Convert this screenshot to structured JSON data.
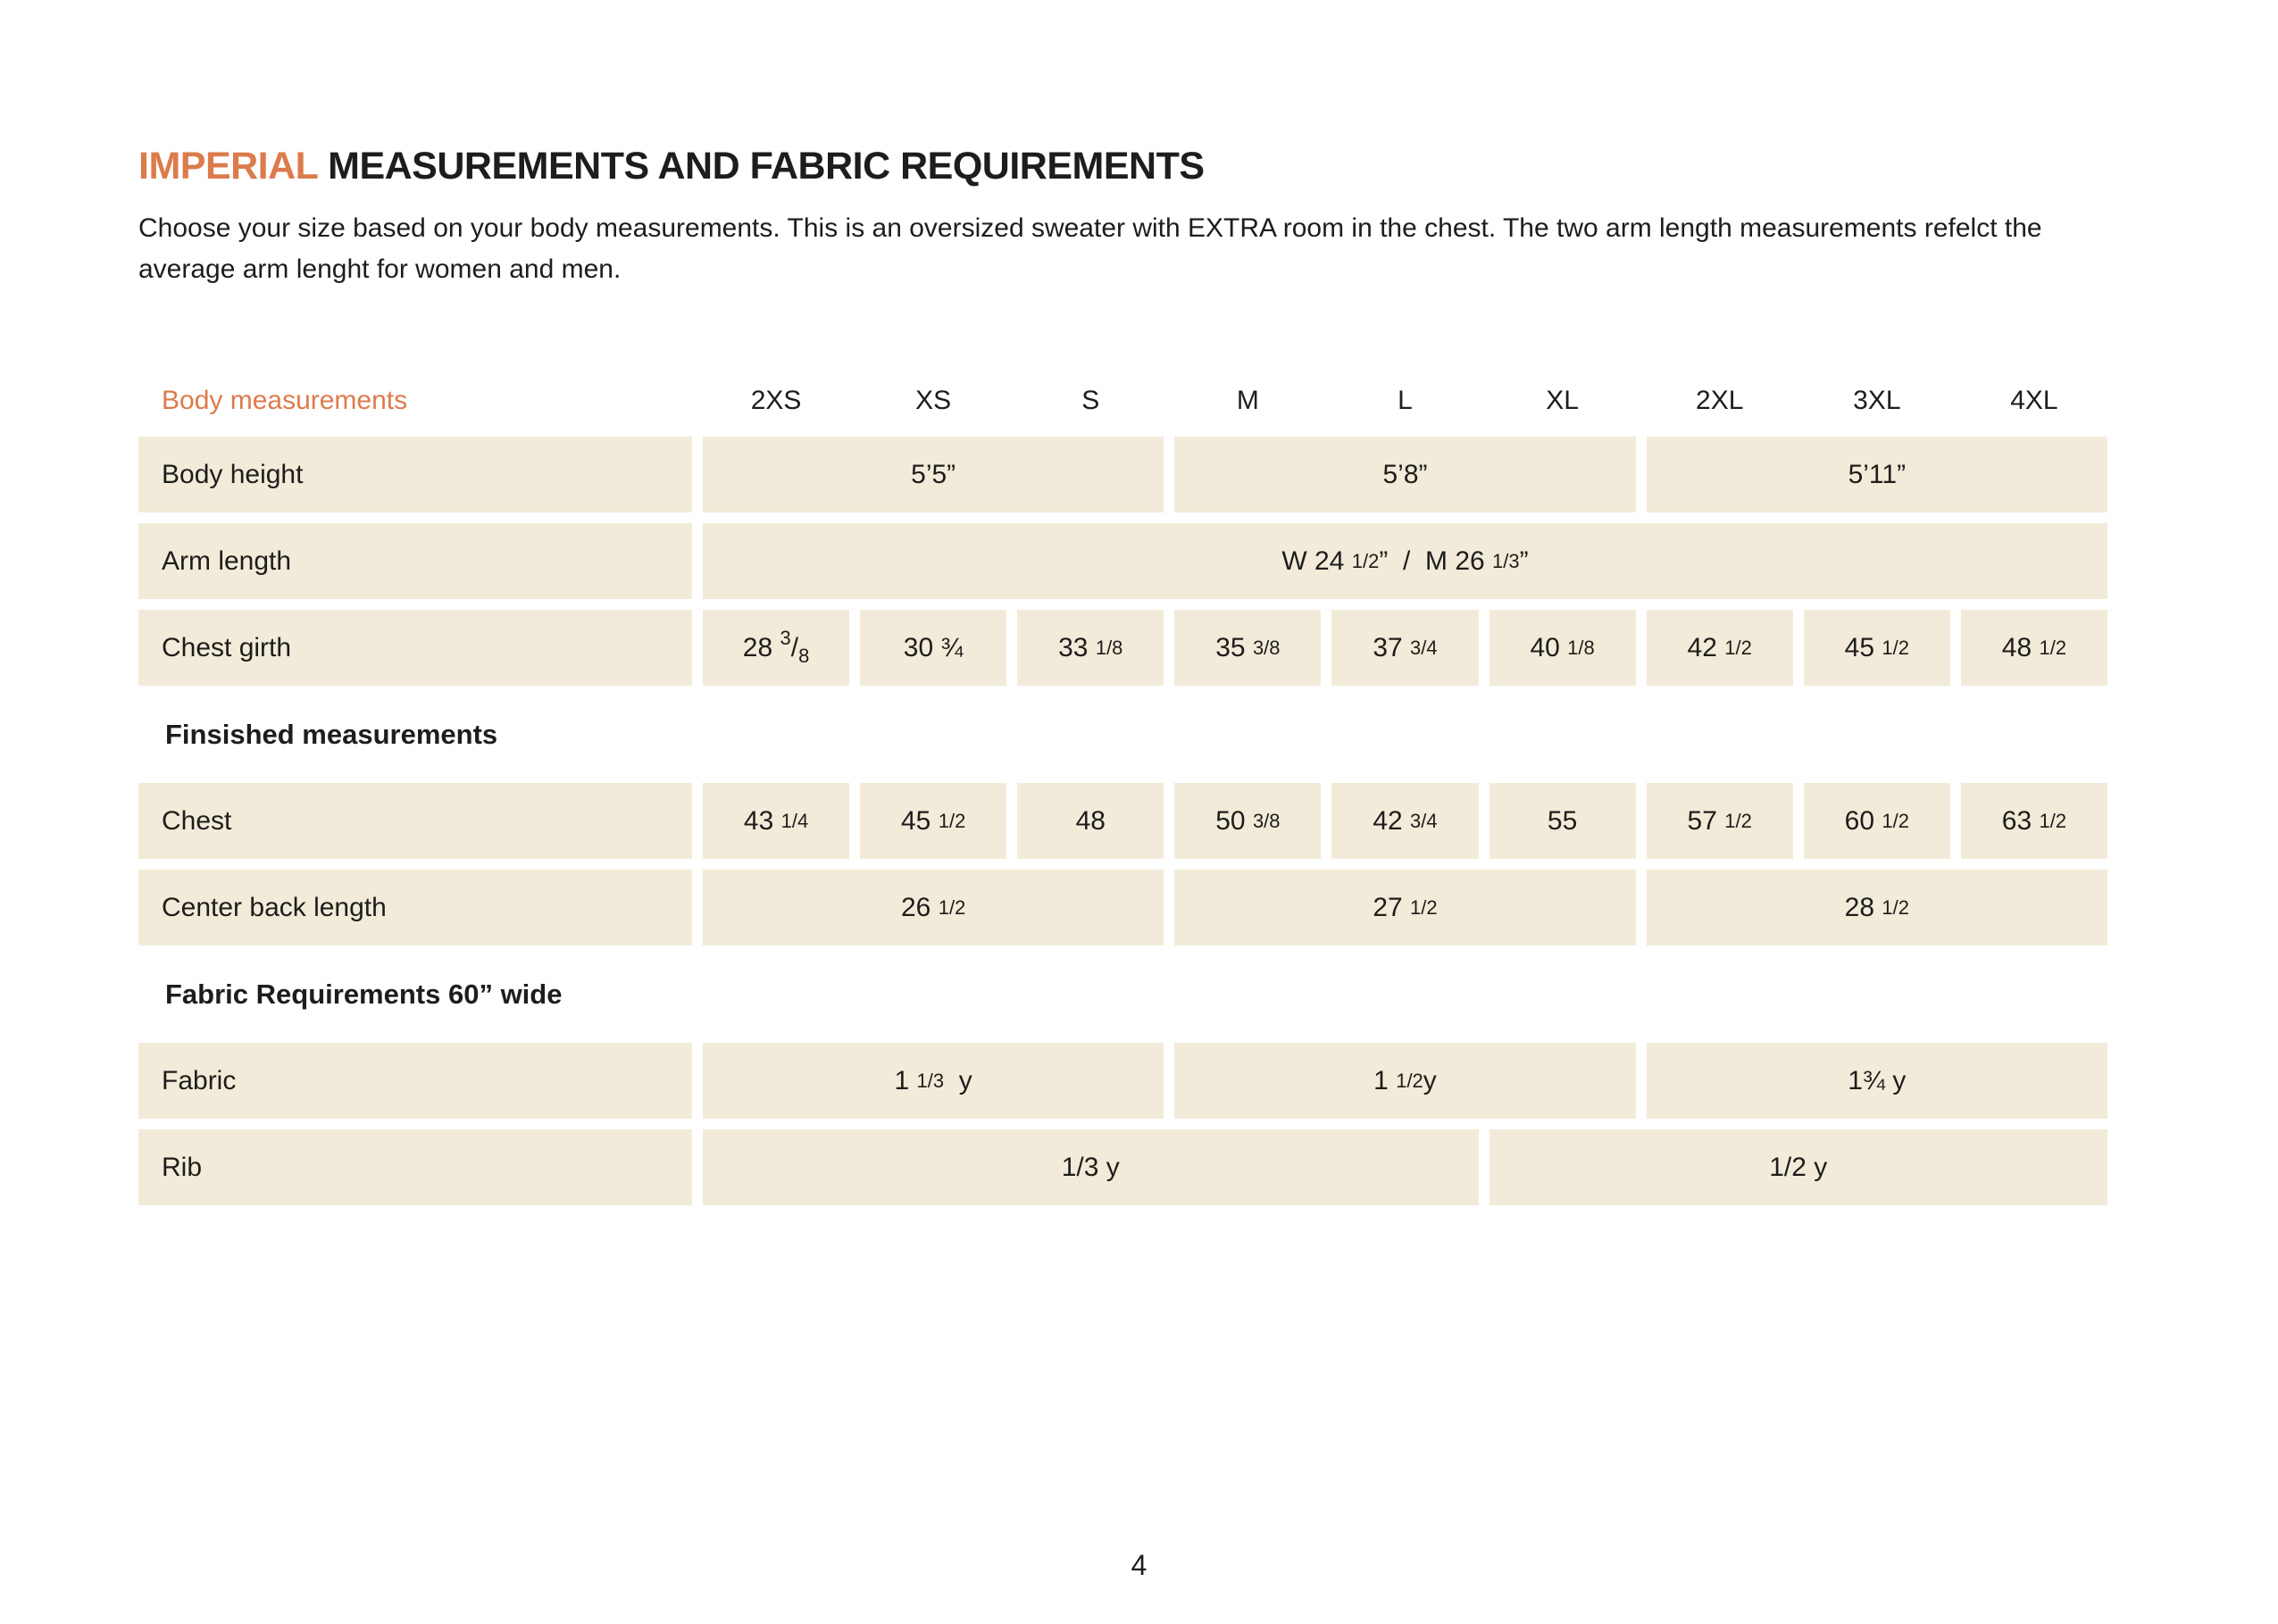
{
  "colors": {
    "accent": "#DC7B4C",
    "cell_bg": "#F2EBD9",
    "text": "#1D1D1B",
    "page_bg": "#FFFFFF"
  },
  "header": {
    "title_accent": "IMPERIAL",
    "title_rest": " MEASUREMENTS AND FABRIC REQUIREMENTS",
    "intro": "Choose your size based on your body measurements. This is an oversized sweater with EXTRA room in the chest. The two arm length measurements refelct the average arm lenght for women and men."
  },
  "table": {
    "header_label": "Body measurements",
    "sizes": [
      "2XS",
      "XS",
      "S",
      "M",
      "L",
      "XL",
      "2XL",
      "3XL",
      "4XL"
    ],
    "rows": [
      {
        "type": "data",
        "label": "Body height",
        "cells": [
          {
            "span": 3,
            "parts": [
              {
                "t": "5’5”"
              }
            ]
          },
          {
            "span": 3,
            "parts": [
              {
                "t": "5’8”"
              }
            ]
          },
          {
            "span": 3,
            "parts": [
              {
                "t": "5’11”"
              }
            ]
          }
        ]
      },
      {
        "type": "data",
        "label": "Arm length",
        "cells": [
          {
            "span": 9,
            "parts": [
              {
                "t": "W 24 "
              },
              {
                "t": "1/2",
                "s": "small"
              },
              {
                "t": "”  /  M 26 "
              },
              {
                "t": "1/3",
                "s": "small"
              },
              {
                "t": "”"
              }
            ]
          }
        ]
      },
      {
        "type": "data",
        "label": "Chest girth",
        "cells": [
          {
            "span": 1,
            "parts": [
              {
                "t": "28 "
              },
              {
                "t": "3",
                "s": "sup"
              },
              {
                "t": "/"
              },
              {
                "t": "8",
                "s": "sub"
              }
            ]
          },
          {
            "span": 1,
            "parts": [
              {
                "t": "30 ¾"
              }
            ]
          },
          {
            "span": 1,
            "parts": [
              {
                "t": "33 "
              },
              {
                "t": "1/8",
                "s": "small"
              }
            ]
          },
          {
            "span": 1,
            "parts": [
              {
                "t": "35 "
              },
              {
                "t": "3/8",
                "s": "small"
              }
            ]
          },
          {
            "span": 1,
            "parts": [
              {
                "t": "37 "
              },
              {
                "t": "3/4",
                "s": "small"
              }
            ]
          },
          {
            "span": 1,
            "parts": [
              {
                "t": "40 "
              },
              {
                "t": "1/8",
                "s": "small"
              }
            ]
          },
          {
            "span": 1,
            "parts": [
              {
                "t": "42 "
              },
              {
                "t": "1/2",
                "s": "small"
              }
            ]
          },
          {
            "span": 1,
            "parts": [
              {
                "t": "45 "
              },
              {
                "t": "1/2",
                "s": "small"
              }
            ]
          },
          {
            "span": 1,
            "parts": [
              {
                "t": "48 "
              },
              {
                "t": "1/2",
                "s": "small"
              }
            ]
          }
        ]
      },
      {
        "type": "section",
        "label": "Finsished  measurements"
      },
      {
        "type": "data",
        "label": "Chest",
        "cells": [
          {
            "span": 1,
            "parts": [
              {
                "t": "43 "
              },
              {
                "t": "1/4",
                "s": "small"
              }
            ]
          },
          {
            "span": 1,
            "parts": [
              {
                "t": "45 "
              },
              {
                "t": "1/2",
                "s": "small"
              }
            ]
          },
          {
            "span": 1,
            "parts": [
              {
                "t": "48"
              }
            ]
          },
          {
            "span": 1,
            "parts": [
              {
                "t": "50 "
              },
              {
                "t": "3/8",
                "s": "small"
              }
            ]
          },
          {
            "span": 1,
            "parts": [
              {
                "t": "42 "
              },
              {
                "t": "3/4",
                "s": "small"
              }
            ]
          },
          {
            "span": 1,
            "parts": [
              {
                "t": "55"
              }
            ]
          },
          {
            "span": 1,
            "parts": [
              {
                "t": "57 "
              },
              {
                "t": "1/2",
                "s": "small"
              }
            ]
          },
          {
            "span": 1,
            "parts": [
              {
                "t": "60 "
              },
              {
                "t": "1/2",
                "s": "small"
              }
            ]
          },
          {
            "span": 1,
            "parts": [
              {
                "t": "63 "
              },
              {
                "t": "1/2",
                "s": "small"
              }
            ]
          }
        ]
      },
      {
        "type": "data",
        "label": "Center back length",
        "cells": [
          {
            "span": 3,
            "parts": [
              {
                "t": "26 "
              },
              {
                "t": "1/2",
                "s": "small"
              }
            ]
          },
          {
            "span": 3,
            "parts": [
              {
                "t": "27 "
              },
              {
                "t": "1/2",
                "s": "small"
              }
            ]
          },
          {
            "span": 3,
            "parts": [
              {
                "t": "28 "
              },
              {
                "t": "1/2",
                "s": "small"
              }
            ]
          }
        ]
      },
      {
        "type": "section",
        "label": "Fabric Requirements 60” wide"
      },
      {
        "type": "data",
        "label": "Fabric",
        "cells": [
          {
            "span": 3,
            "parts": [
              {
                "t": "1 "
              },
              {
                "t": "1/3",
                "s": "small"
              },
              {
                "t": "  y"
              }
            ]
          },
          {
            "span": 3,
            "parts": [
              {
                "t": "1 "
              },
              {
                "t": "1/2",
                "s": "small"
              },
              {
                "t": "y"
              }
            ]
          },
          {
            "span": 3,
            "parts": [
              {
                "t": "1¾ y"
              }
            ]
          }
        ]
      },
      {
        "type": "data",
        "label": "Rib",
        "cells": [
          {
            "span": 5,
            "parts": [
              {
                "t": "1/3 y"
              }
            ]
          },
          {
            "span": 4,
            "parts": [
              {
                "t": "1/2 y"
              }
            ]
          }
        ]
      }
    ]
  },
  "footer": {
    "page_number": "4"
  }
}
